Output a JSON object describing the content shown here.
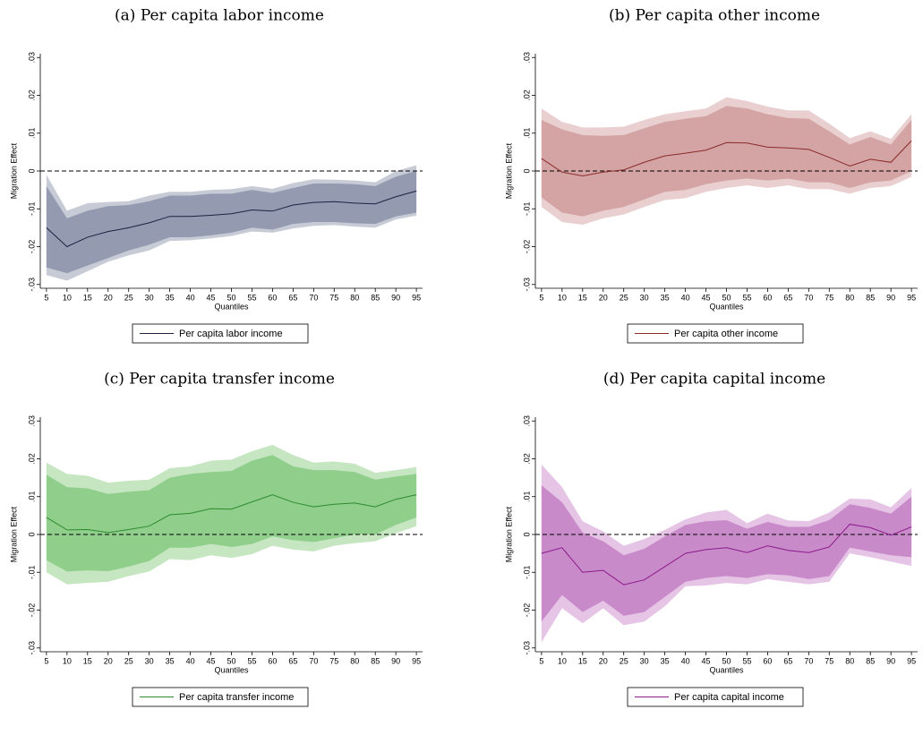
{
  "chart_data": [
    {
      "type": "line",
      "title": "(a) Per capita labor income",
      "xlabel": "Quantiles",
      "ylabel": "Migration Effect",
      "x": [
        5,
        10,
        15,
        20,
        25,
        30,
        35,
        40,
        45,
        50,
        55,
        60,
        65,
        70,
        75,
        80,
        85,
        90,
        95
      ],
      "xticks": [
        5,
        10,
        15,
        20,
        25,
        30,
        35,
        40,
        45,
        50,
        55,
        60,
        65,
        70,
        75,
        80,
        85,
        90,
        95
      ],
      "xlim": [
        3.5,
        96.5
      ],
      "ylim": [
        -0.031,
        0.031
      ],
      "yticks": [
        {
          "value": 0.03,
          "label": ".03"
        },
        {
          "value": 0.02,
          "label": ".02"
        },
        {
          "value": 0.01,
          "label": ".01"
        },
        0,
        {
          "value": -0.01,
          "label": "-.01"
        },
        {
          "value": -0.02,
          "label": "-.02"
        },
        {
          "value": -0.03,
          "label": "-.03"
        }
      ],
      "hline": 0,
      "bands": [
        {
          "color": "#c7cbd6",
          "lower": [
            -0.0275,
            -0.029,
            -0.0265,
            -0.024,
            -0.0223,
            -0.021,
            -0.0185,
            -0.0183,
            -0.0178,
            -0.0172,
            -0.016,
            -0.0163,
            -0.0152,
            -0.0145,
            -0.0143,
            -0.0147,
            -0.015,
            -0.0128,
            -0.0118
          ],
          "upper": [
            -0.001,
            -0.0105,
            -0.0085,
            -0.0082,
            -0.008,
            -0.0065,
            -0.0055,
            -0.0055,
            -0.005,
            -0.0048,
            -0.004,
            -0.0047,
            -0.0032,
            -0.0022,
            -0.0023,
            -0.0025,
            -0.003,
            0.0,
            0.0015
          ]
        },
        {
          "color": "#949bb0",
          "lower": [
            -0.0255,
            -0.027,
            -0.025,
            -0.023,
            -0.021,
            -0.0195,
            -0.0175,
            -0.0175,
            -0.017,
            -0.0163,
            -0.015,
            -0.0155,
            -0.014,
            -0.0135,
            -0.0135,
            -0.0138,
            -0.014,
            -0.012,
            -0.011
          ],
          "upper": [
            -0.004,
            -0.0125,
            -0.0105,
            -0.0093,
            -0.009,
            -0.008,
            -0.0065,
            -0.0065,
            -0.006,
            -0.006,
            -0.005,
            -0.0058,
            -0.0045,
            -0.0033,
            -0.0033,
            -0.0035,
            -0.004,
            -0.0015,
            0.0
          ]
        }
      ],
      "series": [
        {
          "name": "Per capita labor income",
          "color": "#1a2340",
          "values": [
            -0.015,
            -0.02,
            -0.0175,
            -0.016,
            -0.015,
            -0.0137,
            -0.012,
            -0.012,
            -0.0117,
            -0.0113,
            -0.0103,
            -0.0106,
            -0.009,
            -0.0083,
            -0.0081,
            -0.0085,
            -0.0087,
            -0.0068,
            -0.0053
          ]
        }
      ]
    },
    {
      "type": "line",
      "title": "(b) Per capita other income",
      "xlabel": "Quantiles",
      "ylabel": "Migration Effect",
      "x": [
        5,
        10,
        15,
        20,
        25,
        30,
        35,
        40,
        45,
        50,
        55,
        60,
        65,
        70,
        75,
        80,
        85,
        90,
        95
      ],
      "xticks": [
        5,
        10,
        15,
        20,
        25,
        30,
        35,
        40,
        45,
        50,
        55,
        60,
        65,
        70,
        75,
        80,
        85,
        90,
        95
      ],
      "xlim": [
        3.5,
        96.5
      ],
      "ylim": [
        -0.031,
        0.031
      ],
      "yticks": [
        {
          "value": 0.03,
          "label": ".03"
        },
        {
          "value": 0.02,
          "label": ".02"
        },
        {
          "value": 0.01,
          "label": ".01"
        },
        0,
        {
          "value": -0.01,
          "label": "-.01"
        },
        {
          "value": -0.02,
          "label": "-.02"
        },
        {
          "value": -0.03,
          "label": "-.03"
        }
      ],
      "hline": 0,
      "bands": [
        {
          "color": "#e9cfcf",
          "lower": [
            -0.0095,
            -0.0135,
            -0.0142,
            -0.0125,
            -0.0115,
            -0.0095,
            -0.0077,
            -0.0072,
            -0.0055,
            -0.0045,
            -0.0038,
            -0.0045,
            -0.0038,
            -0.0048,
            -0.0048,
            -0.006,
            -0.0045,
            -0.004,
            -0.0015
          ],
          "upper": [
            0.0165,
            0.013,
            0.0115,
            0.0115,
            0.0117,
            0.0135,
            0.015,
            0.0158,
            0.0165,
            0.0195,
            0.0185,
            0.017,
            0.016,
            0.016,
            0.0125,
            0.0087,
            0.0105,
            0.0085,
            0.015
          ]
        },
        {
          "color": "#d4a4a4",
          "lower": [
            -0.007,
            -0.011,
            -0.012,
            -0.0105,
            -0.0095,
            -0.0075,
            -0.0055,
            -0.005,
            -0.0035,
            -0.0025,
            -0.002,
            -0.0025,
            -0.002,
            -0.003,
            -0.003,
            -0.0045,
            -0.003,
            -0.0025,
            0.0
          ],
          "upper": [
            0.0135,
            0.011,
            0.0095,
            0.0093,
            0.0095,
            0.0113,
            0.013,
            0.0138,
            0.0145,
            0.0172,
            0.0165,
            0.015,
            0.014,
            0.0138,
            0.0105,
            0.007,
            0.009,
            0.007,
            0.0135
          ]
        }
      ],
      "series": [
        {
          "name": "Per capita other income",
          "color": "#8b2a2a",
          "values": [
            0.0033,
            -0.0003,
            -0.0013,
            -0.0003,
            0.0003,
            0.0023,
            0.004,
            0.0047,
            0.0055,
            0.0075,
            0.0074,
            0.0063,
            0.0061,
            0.0057,
            0.0036,
            0.0013,
            0.0031,
            0.0023,
            0.008
          ]
        }
      ]
    },
    {
      "type": "line",
      "title": "(c) Per capita transfer income",
      "xlabel": "Quantiles",
      "ylabel": "Migration Effect",
      "x": [
        5,
        10,
        15,
        20,
        25,
        30,
        35,
        40,
        45,
        50,
        55,
        60,
        65,
        70,
        75,
        80,
        85,
        90,
        95
      ],
      "xticks": [
        5,
        10,
        15,
        20,
        25,
        30,
        35,
        40,
        45,
        50,
        55,
        60,
        65,
        70,
        75,
        80,
        85,
        90,
        95
      ],
      "xlim": [
        3.5,
        96.5
      ],
      "ylim": [
        -0.031,
        0.031
      ],
      "yticks": [
        {
          "value": 0.03,
          "label": ".03"
        },
        {
          "value": 0.02,
          "label": ".02"
        },
        {
          "value": 0.01,
          "label": ".01"
        },
        0,
        {
          "value": -0.01,
          "label": "-.01"
        },
        {
          "value": -0.02,
          "label": "-.02"
        },
        {
          "value": -0.03,
          "label": "-.03"
        }
      ],
      "hline": 0,
      "bands": [
        {
          "color": "#c5e6c1",
          "lower": [
            -0.01,
            -0.0132,
            -0.0128,
            -0.0125,
            -0.011,
            -0.0098,
            -0.0065,
            -0.0068,
            -0.0055,
            -0.0062,
            -0.0052,
            -0.003,
            -0.004,
            -0.0045,
            -0.003,
            -0.0023,
            -0.0018,
            0.0003,
            0.0022
          ],
          "upper": [
            0.019,
            0.016,
            0.0155,
            0.0137,
            0.0142,
            0.0145,
            0.0175,
            0.018,
            0.0195,
            0.0198,
            0.022,
            0.0237,
            0.021,
            0.019,
            0.0193,
            0.0187,
            0.0163,
            0.017,
            0.0178
          ]
        },
        {
          "color": "#8fce8b",
          "lower": [
            -0.0068,
            -0.0098,
            -0.0095,
            -0.0097,
            -0.0085,
            -0.007,
            -0.0035,
            -0.0035,
            -0.0025,
            -0.0033,
            -0.0025,
            -0.0005,
            -0.0015,
            -0.002,
            -0.001,
            0.0,
            0.0,
            0.0025,
            0.0045
          ],
          "upper": [
            0.0158,
            0.0125,
            0.0122,
            0.0107,
            0.0113,
            0.0117,
            0.015,
            0.016,
            0.0165,
            0.0168,
            0.0195,
            0.021,
            0.018,
            0.017,
            0.017,
            0.0165,
            0.0145,
            0.0153,
            0.016
          ]
        }
      ],
      "series": [
        {
          "name": "Per capita transfer income",
          "color": "#2e8b2e",
          "values": [
            0.0045,
            0.0012,
            0.0013,
            0.0005,
            0.0013,
            0.0022,
            0.0052,
            0.0056,
            0.0068,
            0.0067,
            0.0086,
            0.0105,
            0.0085,
            0.0073,
            0.008,
            0.0083,
            0.0073,
            0.0093,
            0.0105
          ]
        }
      ]
    },
    {
      "type": "line",
      "title": "(d) Per capita capital income",
      "xlabel": "Quantiles",
      "ylabel": "Migration Effect",
      "x": [
        5,
        10,
        15,
        20,
        25,
        30,
        35,
        40,
        45,
        50,
        55,
        60,
        65,
        70,
        75,
        80,
        85,
        90,
        95
      ],
      "xticks": [
        5,
        10,
        15,
        20,
        25,
        30,
        35,
        40,
        45,
        50,
        55,
        60,
        65,
        70,
        75,
        80,
        85,
        90,
        95
      ],
      "xlim": [
        3.5,
        96.5
      ],
      "ylim": [
        -0.031,
        0.031
      ],
      "yticks": [
        {
          "value": 0.03,
          "label": ".03"
        },
        {
          "value": 0.02,
          "label": ".02"
        },
        {
          "value": 0.01,
          "label": ".01"
        },
        0,
        {
          "value": -0.01,
          "label": "-.01"
        },
        {
          "value": -0.02,
          "label": "-.02"
        },
        {
          "value": -0.03,
          "label": "-.03"
        }
      ],
      "hline": 0,
      "bands": [
        {
          "color": "#e6c4e6",
          "lower": [
            -0.0285,
            -0.0195,
            -0.0235,
            -0.0195,
            -0.024,
            -0.023,
            -0.019,
            -0.0137,
            -0.0135,
            -0.0128,
            -0.0132,
            -0.0118,
            -0.0125,
            -0.0132,
            -0.0125,
            -0.005,
            -0.006,
            -0.0072,
            -0.0083
          ],
          "upper": [
            0.0185,
            0.0125,
            0.0035,
            0.0008,
            -0.003,
            -0.0012,
            0.0012,
            0.004,
            0.0058,
            0.0065,
            0.003,
            0.0055,
            0.0037,
            0.0035,
            0.0058,
            0.0095,
            0.0093,
            0.0072,
            0.0123
          ]
        },
        {
          "color": "#c98ac9",
          "lower": [
            -0.023,
            -0.016,
            -0.0205,
            -0.0175,
            -0.0215,
            -0.0205,
            -0.0165,
            -0.0125,
            -0.0115,
            -0.011,
            -0.0115,
            -0.0105,
            -0.0108,
            -0.0118,
            -0.011,
            -0.0035,
            -0.0045,
            -0.0055,
            -0.006
          ],
          "upper": [
            0.013,
            0.0085,
            0.0005,
            -0.0018,
            -0.0055,
            -0.0038,
            -0.0005,
            0.0025,
            0.0035,
            0.0038,
            0.0015,
            0.0033,
            0.002,
            0.002,
            0.0038,
            0.008,
            0.007,
            0.0055,
            0.01
          ]
        }
      ],
      "series": [
        {
          "name": "Per capita capital income",
          "color": "#8b1a8b",
          "values": [
            -0.005,
            -0.0035,
            -0.01,
            -0.0095,
            -0.0133,
            -0.012,
            -0.0085,
            -0.005,
            -0.004,
            -0.0035,
            -0.0048,
            -0.003,
            -0.0042,
            -0.0048,
            -0.0033,
            0.0027,
            0.0018,
            -0.0002,
            0.002
          ]
        }
      ]
    }
  ]
}
